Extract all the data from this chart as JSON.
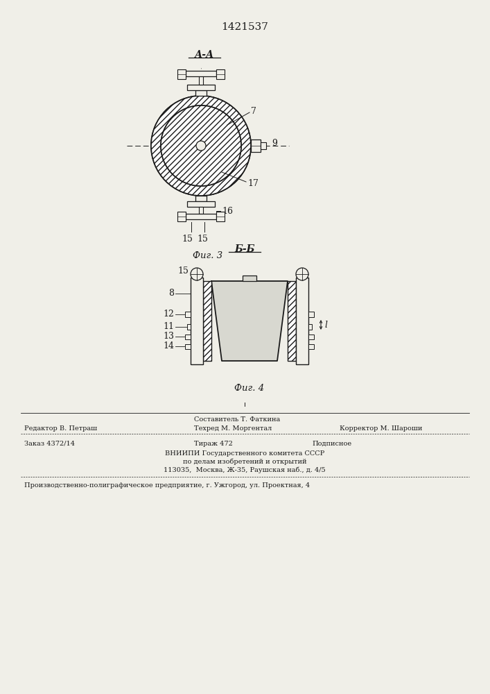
{
  "patent_number": "1421537",
  "background_color": "#f0efe8",
  "line_color": "#1a1a1a",
  "fig3_title": "А-А",
  "fig3_caption": "Фиг. 3",
  "fig4_title": "Б-Б",
  "fig4_caption": "Фиг. 4",
  "footer_line0_mid": "Составитель Т. Фаткина",
  "footer_line1_left": "Редактор В. Петраш",
  "footer_line1_mid": "Техред М. Моргентал",
  "footer_line1_right": "Корректор М. Шароши",
  "footer_line2_left": "Заказ 4372/14",
  "footer_line2_mid": "Тираж 472",
  "footer_line2_right": "Подписное",
  "footer_line3": "ВНИИПИ Государственного комитета СССР",
  "footer_line4": "по делам изобретений и открытий",
  "footer_line5": "113035,  Москва, Ж-35, Раушская наб., д. 4/5",
  "footer_line6": "Производственно-полиграфическое предприятие, г. Ужгород, ул. Проектная, 4"
}
